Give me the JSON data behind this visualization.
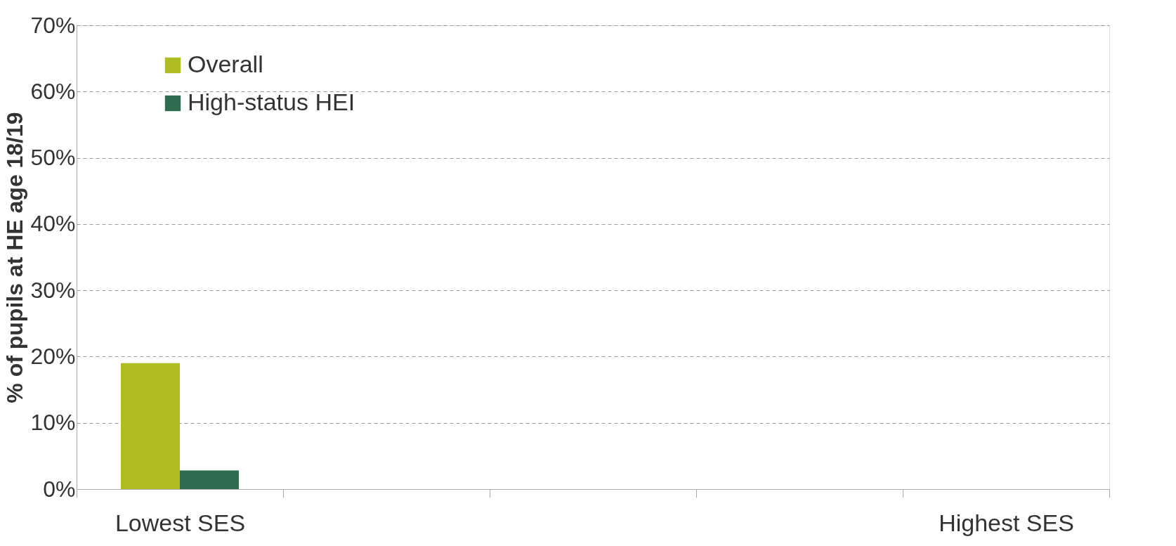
{
  "chart_data": {
    "type": "bar",
    "ylabel": "% of pupils at HE age 18/19",
    "categories": [
      "Lowest SES",
      null,
      null,
      null,
      "Highest SES"
    ],
    "series": [
      {
        "name": "Overall",
        "color": "#afbd22",
        "values": [
          19,
          null,
          null,
          null,
          null
        ]
      },
      {
        "name": "High-status HEI",
        "color": "#2f6b4f",
        "values": [
          2.8,
          null,
          null,
          null,
          null
        ]
      }
    ],
    "ylim": [
      0,
      70
    ],
    "yticks": [
      {
        "value": 0,
        "label": "0%"
      },
      {
        "value": 10,
        "label": "10%"
      },
      {
        "value": 20,
        "label": "20%"
      },
      {
        "value": 30,
        "label": "30%"
      },
      {
        "value": 40,
        "label": "40%"
      },
      {
        "value": 50,
        "label": "50%"
      },
      {
        "value": 60,
        "label": "60%"
      },
      {
        "value": 70,
        "label": "70%"
      }
    ],
    "grid": "y",
    "legend": "top left"
  }
}
